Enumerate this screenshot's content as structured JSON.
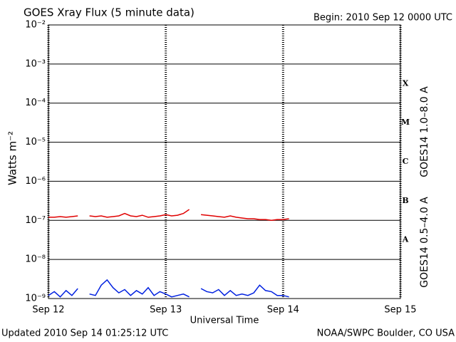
{
  "chart_data": {
    "type": "line",
    "title": "GOES Xray Flux (5 minute data)",
    "subtitle": "Begin:  2010 Sep 12 0000 UTC",
    "x_label": "Universal Time",
    "y_label": "Watts m⁻²",
    "footer_left": "Updated 2010 Sep 14 01:25:12 UTC",
    "footer_right": "NOAA/SWPC Boulder, CO USA",
    "flare_classes": [
      "A",
      "B",
      "C",
      "M",
      "X"
    ],
    "log_y": true,
    "grid": true,
    "xlim": [
      0,
      3
    ],
    "xticks": [
      {
        "value": 0,
        "label": "Sep 12"
      },
      {
        "value": 1,
        "label": "Sep 13"
      },
      {
        "value": 2,
        "label": "Sep 14"
      },
      {
        "value": 3,
        "label": "Sep 15"
      }
    ],
    "ylim": [
      1e-09,
      0.01
    ],
    "yticks": [
      {
        "value": 1e-09,
        "label": "10⁻⁹"
      },
      {
        "value": 1e-08,
        "label": "10⁻⁸"
      },
      {
        "value": 1e-07,
        "label": "10⁻⁷"
      },
      {
        "value": 1e-06,
        "label": "10⁻⁶"
      },
      {
        "value": 1e-05,
        "label": "10⁻⁵"
      },
      {
        "value": 0.0001,
        "label": "10⁻⁴"
      },
      {
        "value": 0.001,
        "label": "10⁻³"
      },
      {
        "value": 0.01,
        "label": "10⁻²"
      }
    ],
    "x": [
      0,
      0.05,
      0.1,
      0.15,
      0.2,
      0.25,
      0.3,
      0.35,
      0.4,
      0.45,
      0.5,
      0.55,
      0.6,
      0.65,
      0.7,
      0.75,
      0.8,
      0.85,
      0.9,
      0.95,
      1.0,
      1.05,
      1.1,
      1.15,
      1.2,
      1.25,
      1.3,
      1.35,
      1.4,
      1.45,
      1.5,
      1.55,
      1.6,
      1.65,
      1.7,
      1.75,
      1.8,
      1.85,
      1.9,
      1.95,
      2.0,
      2.05
    ],
    "series": [
      {
        "name": "GOES14 1.0–8.0 A",
        "color": "#e00000",
        "values": [
          1.2e-07,
          1.2e-07,
          1.25e-07,
          1.2e-07,
          1.25e-07,
          1.3e-07,
          null,
          1.3e-07,
          1.25e-07,
          1.3e-07,
          1.2e-07,
          1.25e-07,
          1.3e-07,
          1.5e-07,
          1.3e-07,
          1.25e-07,
          1.35e-07,
          1.2e-07,
          1.25e-07,
          1.3e-07,
          1.4e-07,
          1.3e-07,
          1.35e-07,
          1.5e-07,
          1.9e-07,
          null,
          1.4e-07,
          1.35e-07,
          1.3e-07,
          1.25e-07,
          1.2e-07,
          1.3e-07,
          1.2e-07,
          1.15e-07,
          1.1e-07,
          1.1e-07,
          1.05e-07,
          1.05e-07,
          1e-07,
          1.05e-07,
          1.05e-07,
          1.1e-07
        ]
      },
      {
        "name": "GOES14 0.5–4.0 A",
        "color": "#0020e0",
        "values": [
          1.2e-09,
          1.5e-09,
          1.1e-09,
          1.6e-09,
          1.2e-09,
          1.8e-09,
          null,
          1.3e-09,
          1.2e-09,
          2.2e-09,
          3e-09,
          1.9e-09,
          1.4e-09,
          1.7e-09,
          1.2e-09,
          1.6e-09,
          1.3e-09,
          1.9e-09,
          1.2e-09,
          1.5e-09,
          1.3e-09,
          1.1e-09,
          1.2e-09,
          1.3e-09,
          1.1e-09,
          null,
          1.8e-09,
          1.5e-09,
          1.4e-09,
          1.7e-09,
          1.2e-09,
          1.6e-09,
          1.2e-09,
          1.3e-09,
          1.2e-09,
          1.4e-09,
          2.2e-09,
          1.6e-09,
          1.5e-09,
          1.2e-09,
          1.2e-09,
          1.1e-09
        ]
      }
    ]
  }
}
